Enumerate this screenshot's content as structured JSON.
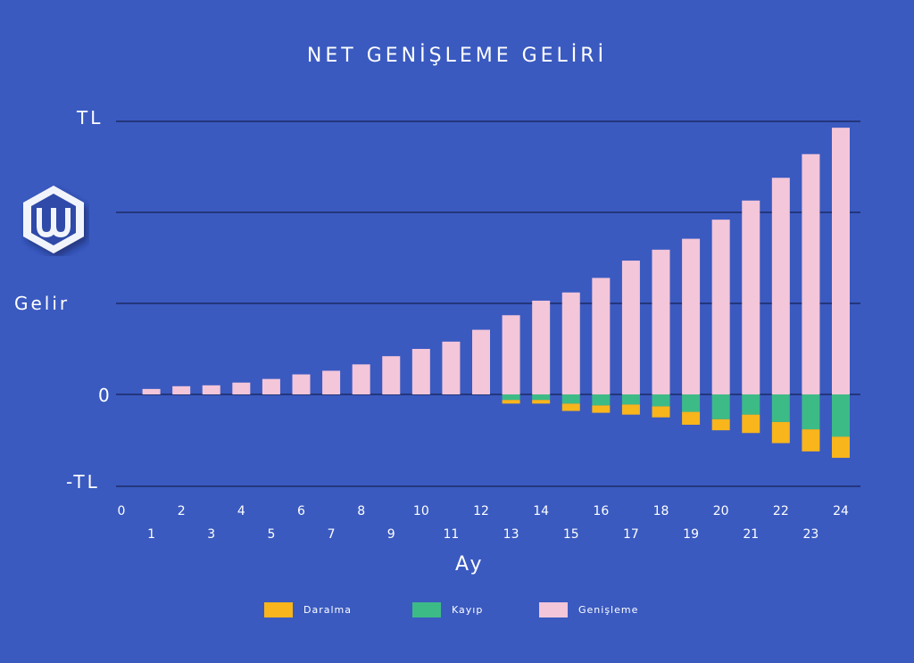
{
  "chart_data": {
    "type": "bar",
    "stacked": true,
    "title": "NET GENİŞLEME GELİRİ",
    "ylabel": "Gelir",
    "xlabel": "Ay",
    "y_tick_labels": {
      "top": "TL",
      "zero": "0",
      "bottom": "-TL"
    },
    "ylim": [
      -100,
      300
    ],
    "categories": [
      1,
      2,
      3,
      4,
      5,
      6,
      7,
      8,
      9,
      10,
      11,
      12,
      13,
      14,
      15,
      16,
      17,
      18,
      19,
      20,
      21,
      22,
      23,
      24
    ],
    "x_ticks": [
      0,
      1,
      2,
      3,
      4,
      5,
      6,
      7,
      8,
      9,
      10,
      11,
      12,
      13,
      14,
      15,
      16,
      17,
      18,
      19,
      20,
      21,
      22,
      23,
      24
    ],
    "series": [
      {
        "name": "Genişleme",
        "color": "#f4c6d9",
        "values": [
          6,
          9,
          10,
          13,
          17,
          22,
          26,
          33,
          42,
          50,
          58,
          71,
          87,
          103,
          112,
          128,
          147,
          159,
          171,
          192,
          213,
          238,
          264,
          293
        ]
      },
      {
        "name": "Kayıp",
        "color": "#3dbb86",
        "values": [
          0,
          0,
          0,
          0,
          0,
          0,
          0,
          0,
          0,
          0,
          0,
          0,
          -6,
          -6,
          -10,
          -12,
          -11,
          -13,
          -19,
          -27,
          -22,
          -30,
          -38,
          -46
        ]
      },
      {
        "name": "Daralma",
        "color": "#f8b51c",
        "values": [
          0,
          0,
          0,
          0,
          0,
          0,
          0,
          0,
          0,
          0,
          0,
          0,
          -4,
          -4,
          -8,
          -8,
          -11,
          -12,
          -14,
          -12,
          -20,
          -23,
          -24,
          -23
        ]
      }
    ],
    "grid": true,
    "legend": "bottom"
  }
}
